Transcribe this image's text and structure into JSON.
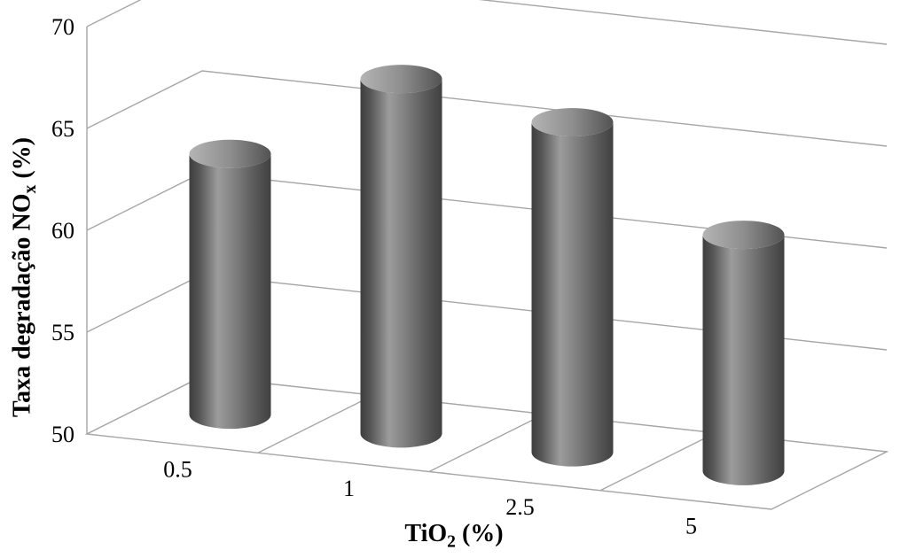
{
  "chart": {
    "type": "bar-3d-cylinder",
    "categories": [
      "0.5",
      "1",
      "2.5",
      "5"
    ],
    "values": [
      62.8,
      67.4,
      66.2,
      61.6
    ],
    "ylim": [
      50,
      70
    ],
    "yticks": [
      50,
      55,
      60,
      65,
      70
    ],
    "ytick_labels": [
      "50",
      "55",
      "60",
      "65",
      "70"
    ],
    "xtick_labels": [
      "0.5",
      "1",
      "2.5",
      "5"
    ],
    "bar_fill": "#6c6c6c",
    "bar_light": "#9c9c9c",
    "bar_dark": "#3e3e3e",
    "bar_top_light": "#a8a8a8",
    "bar_top_dark": "#595959",
    "floor_fill": "#ffffff",
    "floor_stroke": "#a6a6a6",
    "wall_stroke": "#a6a6a6",
    "axis_fontsize": 26,
    "ylabel_plain": "Taxa degradação NOx (%)",
    "ylabel_html": "Taxa degradação NO<sub>x</sub> (%)",
    "xlabel_plain": "TiO2 (%)",
    "xlabel_html": "TiO<sub>2</sub> (%)",
    "label_fontsize": 28,
    "cylinder_radius_x": 46,
    "cylinder_radius_y": 16,
    "background_color": "#ffffff"
  }
}
